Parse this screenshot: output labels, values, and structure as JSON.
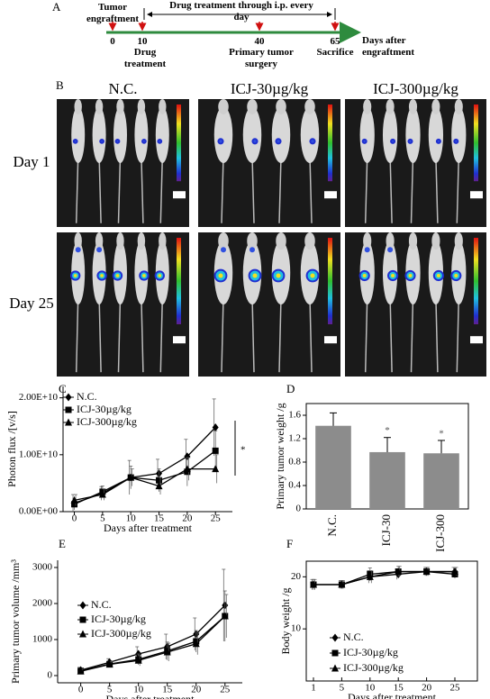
{
  "timeline": {
    "panel": "A",
    "title": "Drug treatment through i.p. every day",
    "events": [
      {
        "day": 0,
        "label": "Tumor engraftment"
      },
      {
        "day": 10,
        "label": "Drug treatment"
      },
      {
        "day": 40,
        "label": "Primary tumor surgery"
      },
      {
        "day": 65,
        "label": "Sacrifice"
      }
    ],
    "axis_label": "Days after engraftment"
  },
  "imaging": {
    "panel": "B",
    "groups": [
      "N.C.",
      "ICJ-30µg/kg",
      "ICJ-300µg/kg"
    ],
    "timepoints": [
      "Day 1",
      "Day 25"
    ]
  },
  "chart_data": [
    {
      "type": "line",
      "panel": "C",
      "x_label": "Days after treatment",
      "y_label": "Photon flux /[v/s]",
      "x": [
        0,
        5,
        10,
        15,
        20,
        25
      ],
      "xlim": [
        -2,
        28
      ],
      "xticks": [
        0,
        5,
        10,
        15,
        20,
        25
      ],
      "ylim": [
        0,
        22000000000
      ],
      "yticks": [
        {
          "value": 0,
          "label": "0.00E+00"
        },
        {
          "value": 10000000000,
          "label": "1.00E+10"
        },
        {
          "value": 20000000000,
          "label": "2.00E+10"
        }
      ],
      "legend": "upper left",
      "annotation": "*",
      "series": [
        {
          "name": "N.C.",
          "color": "#000000",
          "marker": "diamond",
          "values": [
            1500000000,
            3200000000,
            6000000000,
            6700000000,
            9700000000,
            14800000000
          ],
          "errors": [
            1500000000,
            1200000000,
            3000000000,
            2500000000,
            3000000000,
            5000000000
          ]
        },
        {
          "name": "ICJ-30µg/kg",
          "color": "#000000",
          "marker": "square",
          "values": [
            1300000000,
            3500000000,
            6000000000,
            5500000000,
            7000000000,
            10700000000
          ],
          "errors": [
            1000000000,
            1000000000,
            2000000000,
            2000000000,
            2500000000,
            3500000000
          ]
        },
        {
          "name": "ICJ-300µg/kg",
          "color": "#000000",
          "marker": "triangle",
          "values": [
            2000000000,
            3000000000,
            6000000000,
            4500000000,
            7500000000,
            7500000000
          ],
          "errors": [
            1000000000,
            1000000000,
            1500000000,
            1500000000,
            2000000000,
            2500000000
          ]
        }
      ]
    },
    {
      "type": "bar",
      "panel": "D",
      "y_label": "Primary tumor weight /g",
      "categories": [
        "N.C.",
        "ICJ-30",
        "ICJ-300"
      ],
      "values": [
        1.42,
        0.97,
        0.95
      ],
      "errors": [
        0.22,
        0.25,
        0.22
      ],
      "annotations": [
        null,
        "*",
        "*"
      ],
      "color": "#8c8c8c",
      "ylim": [
        0,
        1.8
      ],
      "yticks": [
        0,
        0.4,
        0.8,
        1.2,
        1.6
      ]
    },
    {
      "type": "line",
      "panel": "E",
      "x_label": "Days after treatment",
      "y_label": "Primary tumor volume /mm³",
      "x": [
        0,
        5,
        10,
        15,
        20,
        25
      ],
      "xlim": [
        -4,
        28
      ],
      "xticks": [
        0,
        5,
        10,
        15,
        20,
        25
      ],
      "ylim": [
        -200,
        3200
      ],
      "yticks": [
        0,
        1000,
        2000,
        3000
      ],
      "legend": "upper left",
      "series": [
        {
          "name": "N.C.",
          "color": "#000000",
          "marker": "diamond",
          "values": [
            150,
            370,
            600,
            800,
            1150,
            1950
          ],
          "errors": [
            80,
            100,
            200,
            350,
            450,
            1000
          ]
        },
        {
          "name": "ICJ-30µg/kg",
          "color": "#000000",
          "marker": "square",
          "values": [
            130,
            320,
            450,
            680,
            950,
            1650
          ],
          "errors": [
            60,
            80,
            150,
            250,
            300,
            700
          ]
        },
        {
          "name": "ICJ-300µg/kg",
          "color": "#000000",
          "marker": "triangle",
          "values": [
            120,
            310,
            420,
            650,
            880,
            1650
          ],
          "errors": [
            60,
            80,
            150,
            250,
            300,
            600
          ]
        }
      ]
    },
    {
      "type": "line",
      "panel": "F",
      "x_label": "Days after treatment",
      "y_label": "Body weight /g",
      "categories": [
        "1",
        "5",
        "10",
        "15",
        "20",
        "25"
      ],
      "ylim": [
        0,
        23
      ],
      "yticks": [
        10,
        20
      ],
      "legend": "center",
      "series": [
        {
          "name": "N.C.",
          "color": "#000000",
          "marker": "diamond",
          "values": [
            18.5,
            18.5,
            20,
            20.5,
            21,
            21
          ],
          "errors": [
            1,
            0.8,
            1.2,
            1,
            0.8,
            0.8
          ]
        },
        {
          "name": "ICJ-30µg/kg",
          "color": "#000000",
          "marker": "square",
          "values": [
            18.5,
            18.5,
            20.5,
            21,
            21,
            20.5
          ],
          "errors": [
            1,
            0.8,
            1.2,
            1,
            0.8,
            0.8
          ]
        },
        {
          "name": "ICJ-300µg/kg",
          "color": "#000000",
          "marker": "triangle",
          "values": [
            18.5,
            18.5,
            20,
            21,
            21,
            21
          ],
          "errors": [
            1,
            0.8,
            1.2,
            1,
            0.8,
            0.8
          ]
        }
      ]
    }
  ]
}
